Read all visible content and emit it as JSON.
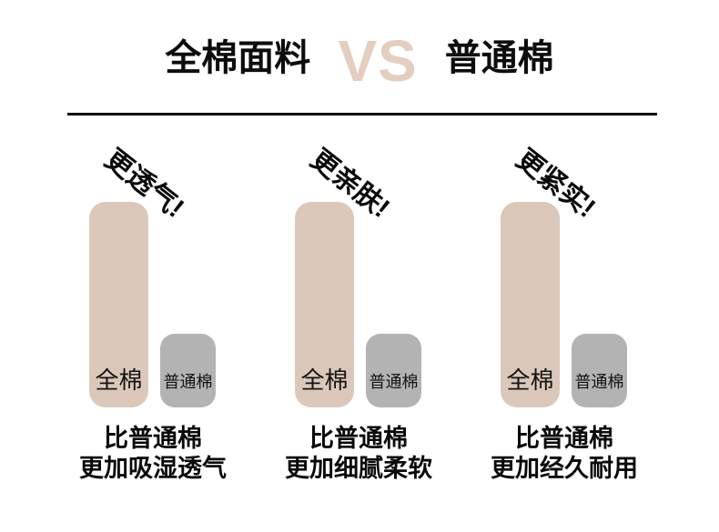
{
  "title": {
    "left": "全棉面料",
    "vs": "VS",
    "right": "普通棉"
  },
  "colors": {
    "accent_beige": "#dcc8ba",
    "vs_beige": "#e3cec0",
    "bar_gray": "#b3b3b3",
    "text_black": "#0d0d0d"
  },
  "groups": [
    {
      "headline": "更透气!",
      "bar1_label": "全棉",
      "bar2_label": "普通棉",
      "caption_line1": "比普通棉",
      "caption_line2": "更加吸湿透气"
    },
    {
      "headline": "更亲肤!",
      "bar1_label": "全棉",
      "bar2_label": "普通棉",
      "caption_line1": "比普通棉",
      "caption_line2": "更加细腻柔软"
    },
    {
      "headline": "更紧实!",
      "bar1_label": "全棉",
      "bar2_label": "普通棉",
      "caption_line1": "比普通棉",
      "caption_line2": "更加经久耐用"
    }
  ],
  "chart_data": [
    {
      "type": "bar",
      "title": "更透气!",
      "categories": [
        "全棉",
        "普通棉"
      ],
      "values": [
        100,
        36
      ],
      "annotation": "比普通棉 更加吸湿透气",
      "bar_colors": [
        "#dcc8ba",
        "#b3b3b3"
      ],
      "grid": false,
      "legend_position": "none",
      "value_meaning": "relative bar height, percent of tallest bar"
    },
    {
      "type": "bar",
      "title": "更亲肤!",
      "categories": [
        "全棉",
        "普通棉"
      ],
      "values": [
        100,
        36
      ],
      "annotation": "比普通棉 更加细腻柔软",
      "bar_colors": [
        "#dcc8ba",
        "#b3b3b3"
      ],
      "grid": false,
      "legend_position": "none",
      "value_meaning": "relative bar height, percent of tallest bar"
    },
    {
      "type": "bar",
      "title": "更紧实!",
      "categories": [
        "全棉",
        "普通棉"
      ],
      "values": [
        100,
        36
      ],
      "annotation": "比普通棉 更加经久耐用",
      "bar_colors": [
        "#dcc8ba",
        "#b3b3b3"
      ],
      "grid": false,
      "legend_position": "none",
      "value_meaning": "relative bar height, percent of tallest bar"
    }
  ]
}
